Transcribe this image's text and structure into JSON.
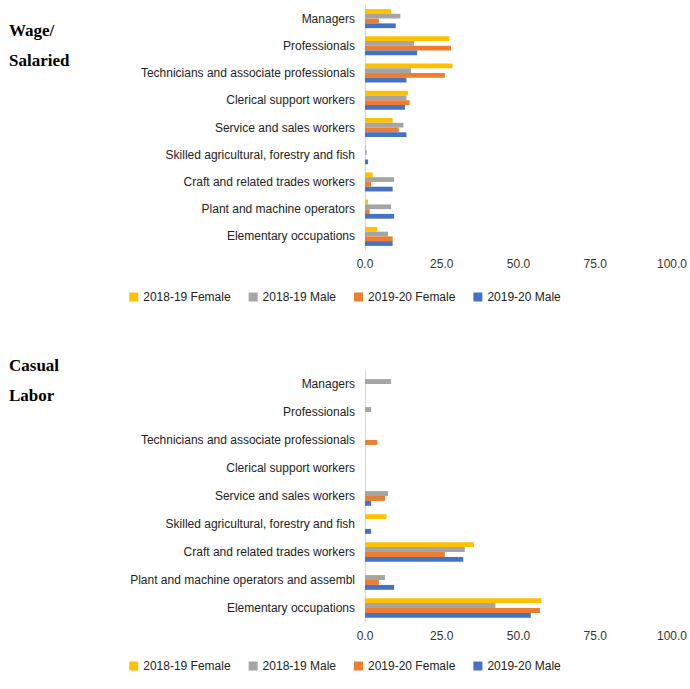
{
  "chart_data": [
    {
      "type": "bar",
      "title": "Wage/\nSalaried",
      "orientation": "horizontal",
      "grid": false,
      "legend": "bottom",
      "categories": [
        "Managers",
        "Professionals",
        "Technicians and associate professionals",
        "Clerical support workers",
        "Service and sales workers",
        "Skilled agricultural, forestry and fish",
        "Craft and related trades workers",
        "Plant and machine operators",
        "Elementary occupations"
      ],
      "series": [
        {
          "name": "2018-19 Female",
          "color": "#ffc000",
          "values": [
            8.5,
            27.5,
            28.5,
            14,
            9,
            0.3,
            2.5,
            1,
            4
          ]
        },
        {
          "name": "2018-19 Male",
          "color": "#a5a5a5",
          "values": [
            11.5,
            16,
            15,
            13.5,
            12.5,
            0.5,
            9.5,
            8.5,
            7.5
          ]
        },
        {
          "name": "2019-20 Female",
          "color": "#ed7d31",
          "values": [
            4.5,
            28,
            26,
            14.5,
            11,
            0,
            2,
            1.5,
            9
          ]
        },
        {
          "name": "2019-20 Male",
          "color": "#4472c4",
          "values": [
            10,
            17,
            13.5,
            13,
            13.5,
            1,
            9,
            9.5,
            9
          ]
        }
      ],
      "xlim": [
        0,
        100
      ],
      "xticks": [
        {
          "value": 0,
          "label": "0.0"
        },
        {
          "value": 25,
          "label": "25.0"
        },
        {
          "value": 50,
          "label": "50.0"
        },
        {
          "value": 75,
          "label": "75.0"
        },
        {
          "value": 100,
          "label": "100.0"
        }
      ]
    },
    {
      "type": "bar",
      "title": "Casual\nLabor",
      "orientation": "horizontal",
      "grid": false,
      "legend": "bottom",
      "categories": [
        "Managers",
        "Professionals",
        "Technicians and associate professionals",
        "Clerical support workers",
        "Service and sales workers",
        "Skilled agricultural, forestry and fish",
        "Craft and related trades workers",
        "Plant and machine operators and assembl",
        "Elementary occupations"
      ],
      "series": [
        {
          "name": "2018-19 Female",
          "color": "#ffc000",
          "values": [
            0,
            0,
            0,
            0,
            0,
            7,
            35.5,
            0,
            57.5
          ]
        },
        {
          "name": "2018-19 Male",
          "color": "#a5a5a5",
          "values": [
            8.5,
            2,
            0,
            0,
            7.5,
            0,
            32.5,
            6.5,
            42.5
          ]
        },
        {
          "name": "2019-20 Female",
          "color": "#ed7d31",
          "values": [
            0,
            0,
            4,
            0,
            6.5,
            0,
            26,
            4.5,
            57
          ]
        },
        {
          "name": "2019-20 Male",
          "color": "#4472c4",
          "values": [
            0,
            0,
            0,
            0,
            2,
            2,
            32,
            9.5,
            54
          ]
        }
      ],
      "xlim": [
        0,
        100
      ],
      "xticks": [
        {
          "value": 0,
          "label": "0.0"
        },
        {
          "value": 25,
          "label": "25.0"
        },
        {
          "value": 50,
          "label": "50.0"
        },
        {
          "value": 75,
          "label": "75.0"
        },
        {
          "value": 100,
          "label": "100.0"
        }
      ]
    }
  ]
}
